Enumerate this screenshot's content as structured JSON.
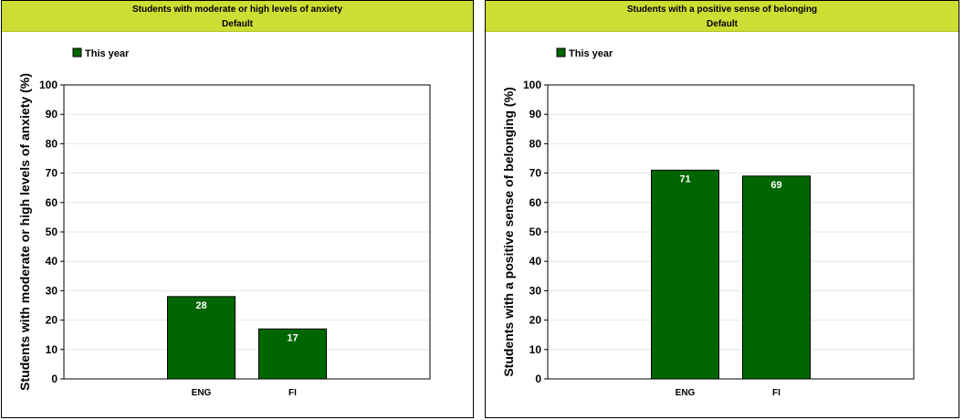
{
  "panels": [
    {
      "title": "Students with moderate or high levels of anxiety",
      "subtitle": "Default"
    },
    {
      "title": "Students with a positive sense of belonging",
      "subtitle": "Default"
    }
  ],
  "colors": {
    "header_bg": "#ccdd33",
    "bar_fill": "#006600",
    "bar_stroke": "#000000",
    "gridline": "#e6e6e6"
  },
  "chart_data": [
    {
      "type": "bar",
      "title": "Students with moderate or high levels of anxiety",
      "subtitle": "Default",
      "categories": [
        "ENG",
        "FI"
      ],
      "series": [
        {
          "name": "This year",
          "values": [
            28,
            17
          ]
        }
      ],
      "data_labels": [
        "28",
        "17"
      ],
      "xlabel": "",
      "ylabel": "Students with moderate or high levels of anxiety (%)",
      "ylim": [
        0,
        100
      ],
      "yticks": [
        "0",
        "10",
        "20",
        "30",
        "40",
        "50",
        "60",
        "70",
        "80",
        "90",
        "100"
      ],
      "grid": true,
      "legend": "top-left"
    },
    {
      "type": "bar",
      "title": "Students with a positive sense of belonging",
      "subtitle": "Default",
      "categories": [
        "ENG",
        "FI"
      ],
      "series": [
        {
          "name": "This year",
          "values": [
            71,
            69
          ]
        }
      ],
      "data_labels": [
        "71",
        "69"
      ],
      "xlabel": "",
      "ylabel": "Students with a positive sense of belonging (%)",
      "ylim": [
        0,
        100
      ],
      "yticks": [
        "0",
        "10",
        "20",
        "30",
        "40",
        "50",
        "60",
        "70",
        "80",
        "90",
        "100"
      ],
      "grid": true,
      "legend": "top-left"
    }
  ]
}
